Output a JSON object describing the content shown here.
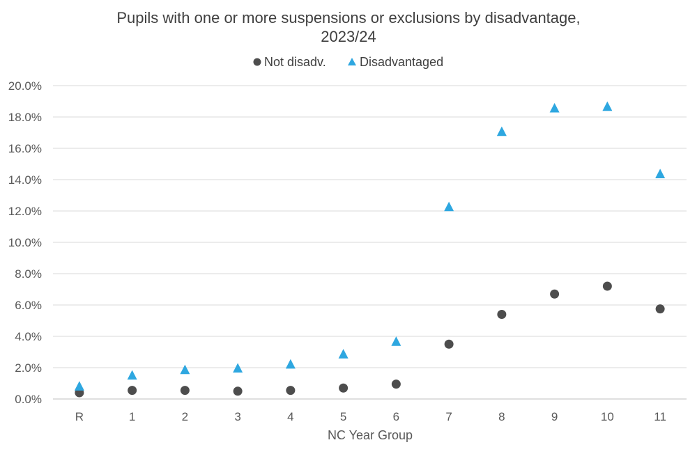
{
  "chart_data": {
    "type": "scatter",
    "title_line1": "Pupils with one or more suspensions or exclusions by disadvantage,",
    "title_line2": "2023/24",
    "xlabel": "NC Year Group",
    "ylabel": "",
    "categories": [
      "R",
      "1",
      "2",
      "3",
      "4",
      "5",
      "6",
      "7",
      "8",
      "9",
      "10",
      "11"
    ],
    "ylim": [
      0,
      20
    ],
    "yticks": [
      "0.0%",
      "2.0%",
      "4.0%",
      "6.0%",
      "8.0%",
      "10.0%",
      "12.0%",
      "14.0%",
      "16.0%",
      "18.0%",
      "20.0%"
    ],
    "grid": true,
    "legend_position": "top",
    "series": [
      {
        "name": "Not disadv.",
        "marker": "circle",
        "color": "#4d4d4d",
        "values": [
          0.4,
          0.55,
          0.55,
          0.5,
          0.55,
          0.7,
          0.95,
          3.5,
          5.4,
          6.7,
          7.2,
          5.75
        ]
      },
      {
        "name": "Disadvantaged",
        "marker": "triangle",
        "color": "#2ea7e0",
        "values": [
          0.8,
          1.5,
          1.85,
          1.95,
          2.2,
          2.85,
          3.65,
          12.25,
          17.05,
          18.55,
          18.65,
          14.35
        ]
      }
    ]
  }
}
